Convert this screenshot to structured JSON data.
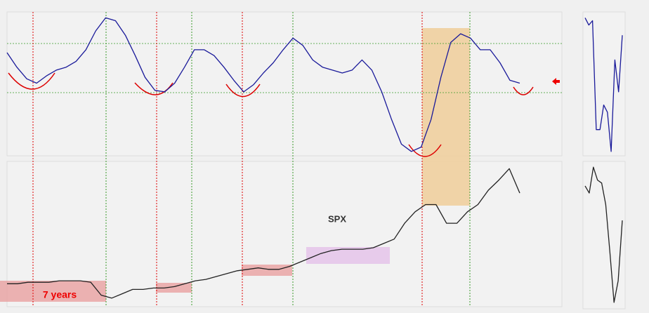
{
  "chart_data": [
    {
      "type": "line",
      "color": "#1a1a9a",
      "ylim": [
        0,
        100
      ],
      "values": [
        71,
        61,
        53,
        50,
        55,
        59,
        61,
        65,
        73,
        86,
        95,
        93,
        83,
        69,
        54,
        45,
        44,
        50,
        61,
        73,
        73,
        69,
        61,
        52,
        44,
        49,
        57,
        64,
        73,
        81,
        76,
        66,
        61,
        59,
        57,
        59,
        66,
        59,
        44,
        25,
        8,
        3,
        6,
        25,
        54,
        78,
        84,
        81,
        73,
        73,
        64,
        52,
        50
      ]
    },
    {
      "type": "line",
      "ylim": [
        0,
        100
      ],
      "annotations": [
        "7 years"
      ],
      "series": [
        {
          "name": "SPX",
          "color": "#222222",
          "values": [
            15,
            15,
            16,
            16,
            16,
            17,
            17,
            17,
            16,
            7,
            5,
            8,
            11,
            11,
            12,
            12,
            13,
            15,
            17,
            18,
            20,
            22,
            24,
            25,
            26,
            25,
            25,
            27,
            30,
            33,
            36,
            38,
            39,
            39,
            39,
            40,
            43,
            46,
            57,
            65,
            70,
            70,
            57,
            57,
            65,
            70,
            80,
            87,
            95,
            78
          ]
        }
      ]
    },
    {
      "type": "line",
      "color": "#1a1a9a",
      "ylim": [
        0,
        100
      ],
      "values": [
        95,
        90,
        93,
        18,
        18,
        35,
        30,
        3,
        66,
        44,
        83
      ]
    },
    {
      "type": "line",
      "color": "#222222",
      "ylim": [
        0,
        100
      ],
      "values": [
        83,
        78,
        96,
        87,
        85,
        70,
        37,
        2,
        17,
        59
      ]
    }
  ]
}
